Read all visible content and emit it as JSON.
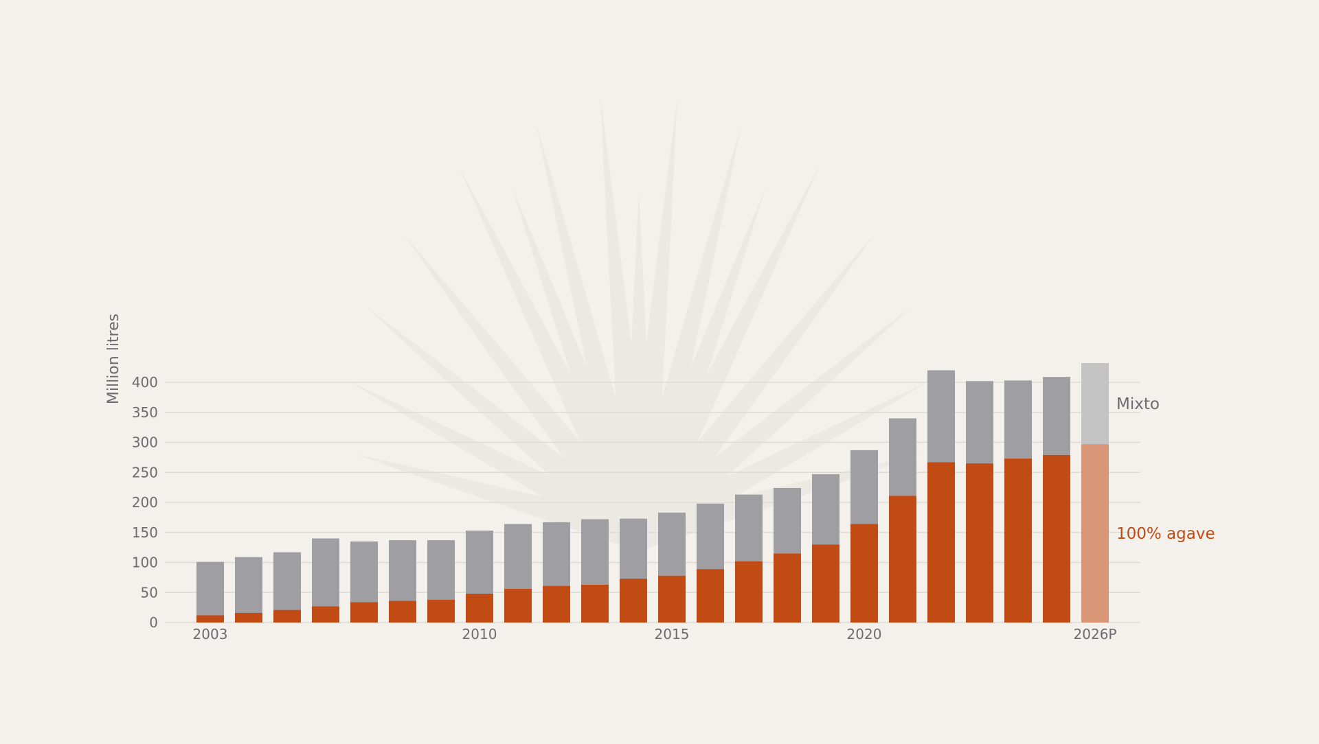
{
  "chart_data": {
    "type": "bar",
    "stacked": true,
    "ylabel": "Million litres",
    "ylim": [
      0,
      430
    ],
    "yticks": [
      0,
      50,
      100,
      150,
      200,
      250,
      300,
      350,
      400
    ],
    "grid": true,
    "categories": [
      "2003",
      "2004",
      "2005",
      "2006",
      "2007",
      "2008",
      "2009",
      "2010",
      "2011",
      "2012",
      "2013",
      "2014",
      "2015",
      "2016",
      "2017",
      "2018",
      "2019",
      "2020",
      "2021",
      "2022",
      "2023",
      "2024",
      "2025",
      "2026P"
    ],
    "xtick_labels": [
      {
        "index": 0,
        "label": "2003"
      },
      {
        "index": 7,
        "label": "2010"
      },
      {
        "index": 12,
        "label": "2015"
      },
      {
        "index": 17,
        "label": "2020"
      },
      {
        "index": 23,
        "label": "2026P"
      }
    ],
    "projected_categories": [
      "2026P"
    ],
    "series": [
      {
        "name": "100% agave",
        "color": "#c04b15",
        "projected_color": "#d89676",
        "values": [
          12,
          16,
          21,
          27,
          34,
          36,
          38,
          48,
          56,
          61,
          63,
          73,
          78,
          89,
          102,
          115,
          130,
          164,
          211,
          267,
          265,
          273,
          279,
          297
        ]
      },
      {
        "name": "Mixto",
        "color": "#9e9ea3",
        "projected_color": "#c4c4c4",
        "values": [
          89,
          93,
          96,
          113,
          101,
          101,
          99,
          105,
          108,
          106,
          109,
          100,
          105,
          109,
          111,
          109,
          117,
          123,
          129,
          153,
          137,
          130,
          130,
          135
        ]
      }
    ]
  }
}
